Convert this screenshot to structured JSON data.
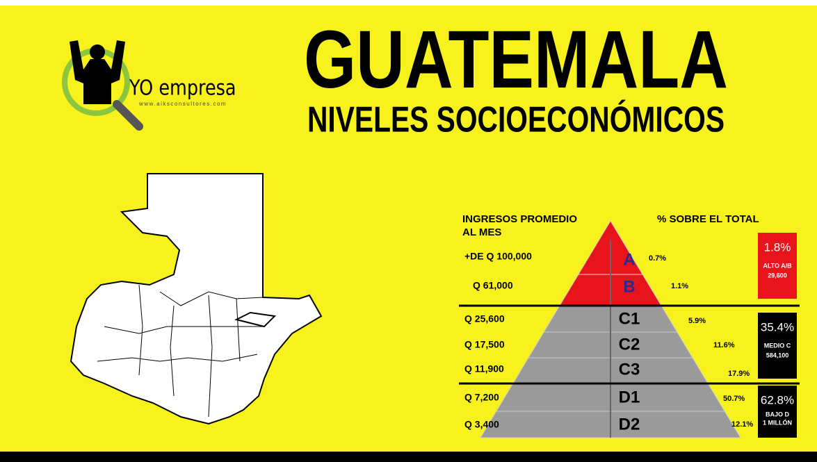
{
  "header": {
    "title": "GUATEMALA",
    "subtitle": "NIVELES SOCIOECONÓMICOS"
  },
  "logo": {
    "name": "YO empresa",
    "url": "www.aiksconsultores.com"
  },
  "pyramid": {
    "income_header": [
      "INGRESOS PROMEDIO",
      "AL MES"
    ],
    "share_header": "% SOBRE EL TOTAL",
    "levels": [
      {
        "income": "+DE Q 100,000",
        "letter": "A",
        "share": "0.7%"
      },
      {
        "income": "Q 61,000",
        "letter": "B",
        "share": "1.1%"
      },
      {
        "income": "Q 25,600",
        "letter": "C1",
        "share": "5.9%"
      },
      {
        "income": "Q 17,500",
        "letter": "C2",
        "share": "11.6%"
      },
      {
        "income": "Q 11,900",
        "letter": "C3",
        "share": "17.9%"
      },
      {
        "income": "Q 7,200",
        "letter": "D1",
        "share": "50.7%"
      },
      {
        "income": "Q 3,400",
        "letter": "D2",
        "share": "12.1%"
      }
    ],
    "groups": [
      {
        "share": "1.8%",
        "label": "ALTO A/B",
        "count": "29,600"
      },
      {
        "share": "35.4%",
        "label": "MEDIO C",
        "count": "584,100"
      },
      {
        "share": "62.8%",
        "label": "BAJO D",
        "count": "1 MILLÓN"
      }
    ]
  }
}
